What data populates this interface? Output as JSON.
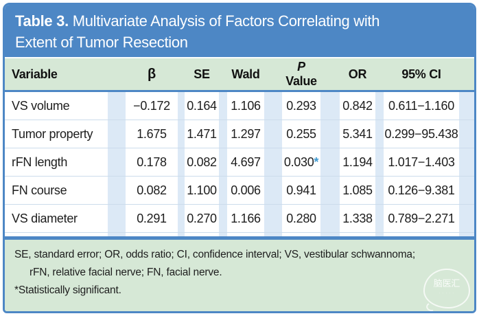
{
  "table": {
    "title": {
      "label": "Table 3.",
      "line1_rest": " Multivariate Analysis of Factors Correlating with",
      "line2": "Extent of Tumor Resection"
    },
    "columns": {
      "variable": "Variable",
      "beta": "β",
      "se": "SE",
      "wald": "Wald",
      "p_italic": "P",
      "p_rest": " Value",
      "or": "OR",
      "ci": "95% CI"
    },
    "rows": [
      {
        "variable": "VS volume",
        "beta": "−0.172",
        "se": "0.164",
        "wald": "1.106",
        "p": "0.293",
        "p_star": "",
        "or": "0.842",
        "ci": "0.611−1.160"
      },
      {
        "variable": "Tumor property",
        "beta": "1.675",
        "se": "1.471",
        "wald": "1.297",
        "p": "0.255",
        "p_star": "",
        "or": "5.341",
        "ci": "0.299−95.438"
      },
      {
        "variable": "rFN length",
        "beta": "0.178",
        "se": "0.082",
        "wald": "4.697",
        "p": "0.030",
        "p_star": "*",
        "or": "1.194",
        "ci": "1.017−1.403"
      },
      {
        "variable": "FN course",
        "beta": "0.082",
        "se": "1.100",
        "wald": "0.006",
        "p": "0.941",
        "p_star": "",
        "or": "1.085",
        "ci": "0.126−9.381"
      },
      {
        "variable": "VS diameter",
        "beta": "0.291",
        "se": "0.270",
        "wald": "1.166",
        "p": "0.280",
        "p_star": "",
        "or": "1.338",
        "ci": "0.789−2.271"
      }
    ],
    "footnotes": {
      "line1": "SE, standard error; OR, odds ratio; CI, confidence interval; VS, vestibular schwannoma;",
      "line2": "rFN, relative facial nerve; FN, facial nerve.",
      "significance": "*Statistically significant."
    }
  },
  "watermark": {
    "text": "脑医汇"
  },
  "colors": {
    "accent_blue": "#4d87c5",
    "header_green": "#d6e8d6",
    "stripe_blue": "#dce9f6",
    "row_divider": "#ccdcec",
    "significant_star": "#3f9ad2",
    "title_text": "#ffffff"
  }
}
